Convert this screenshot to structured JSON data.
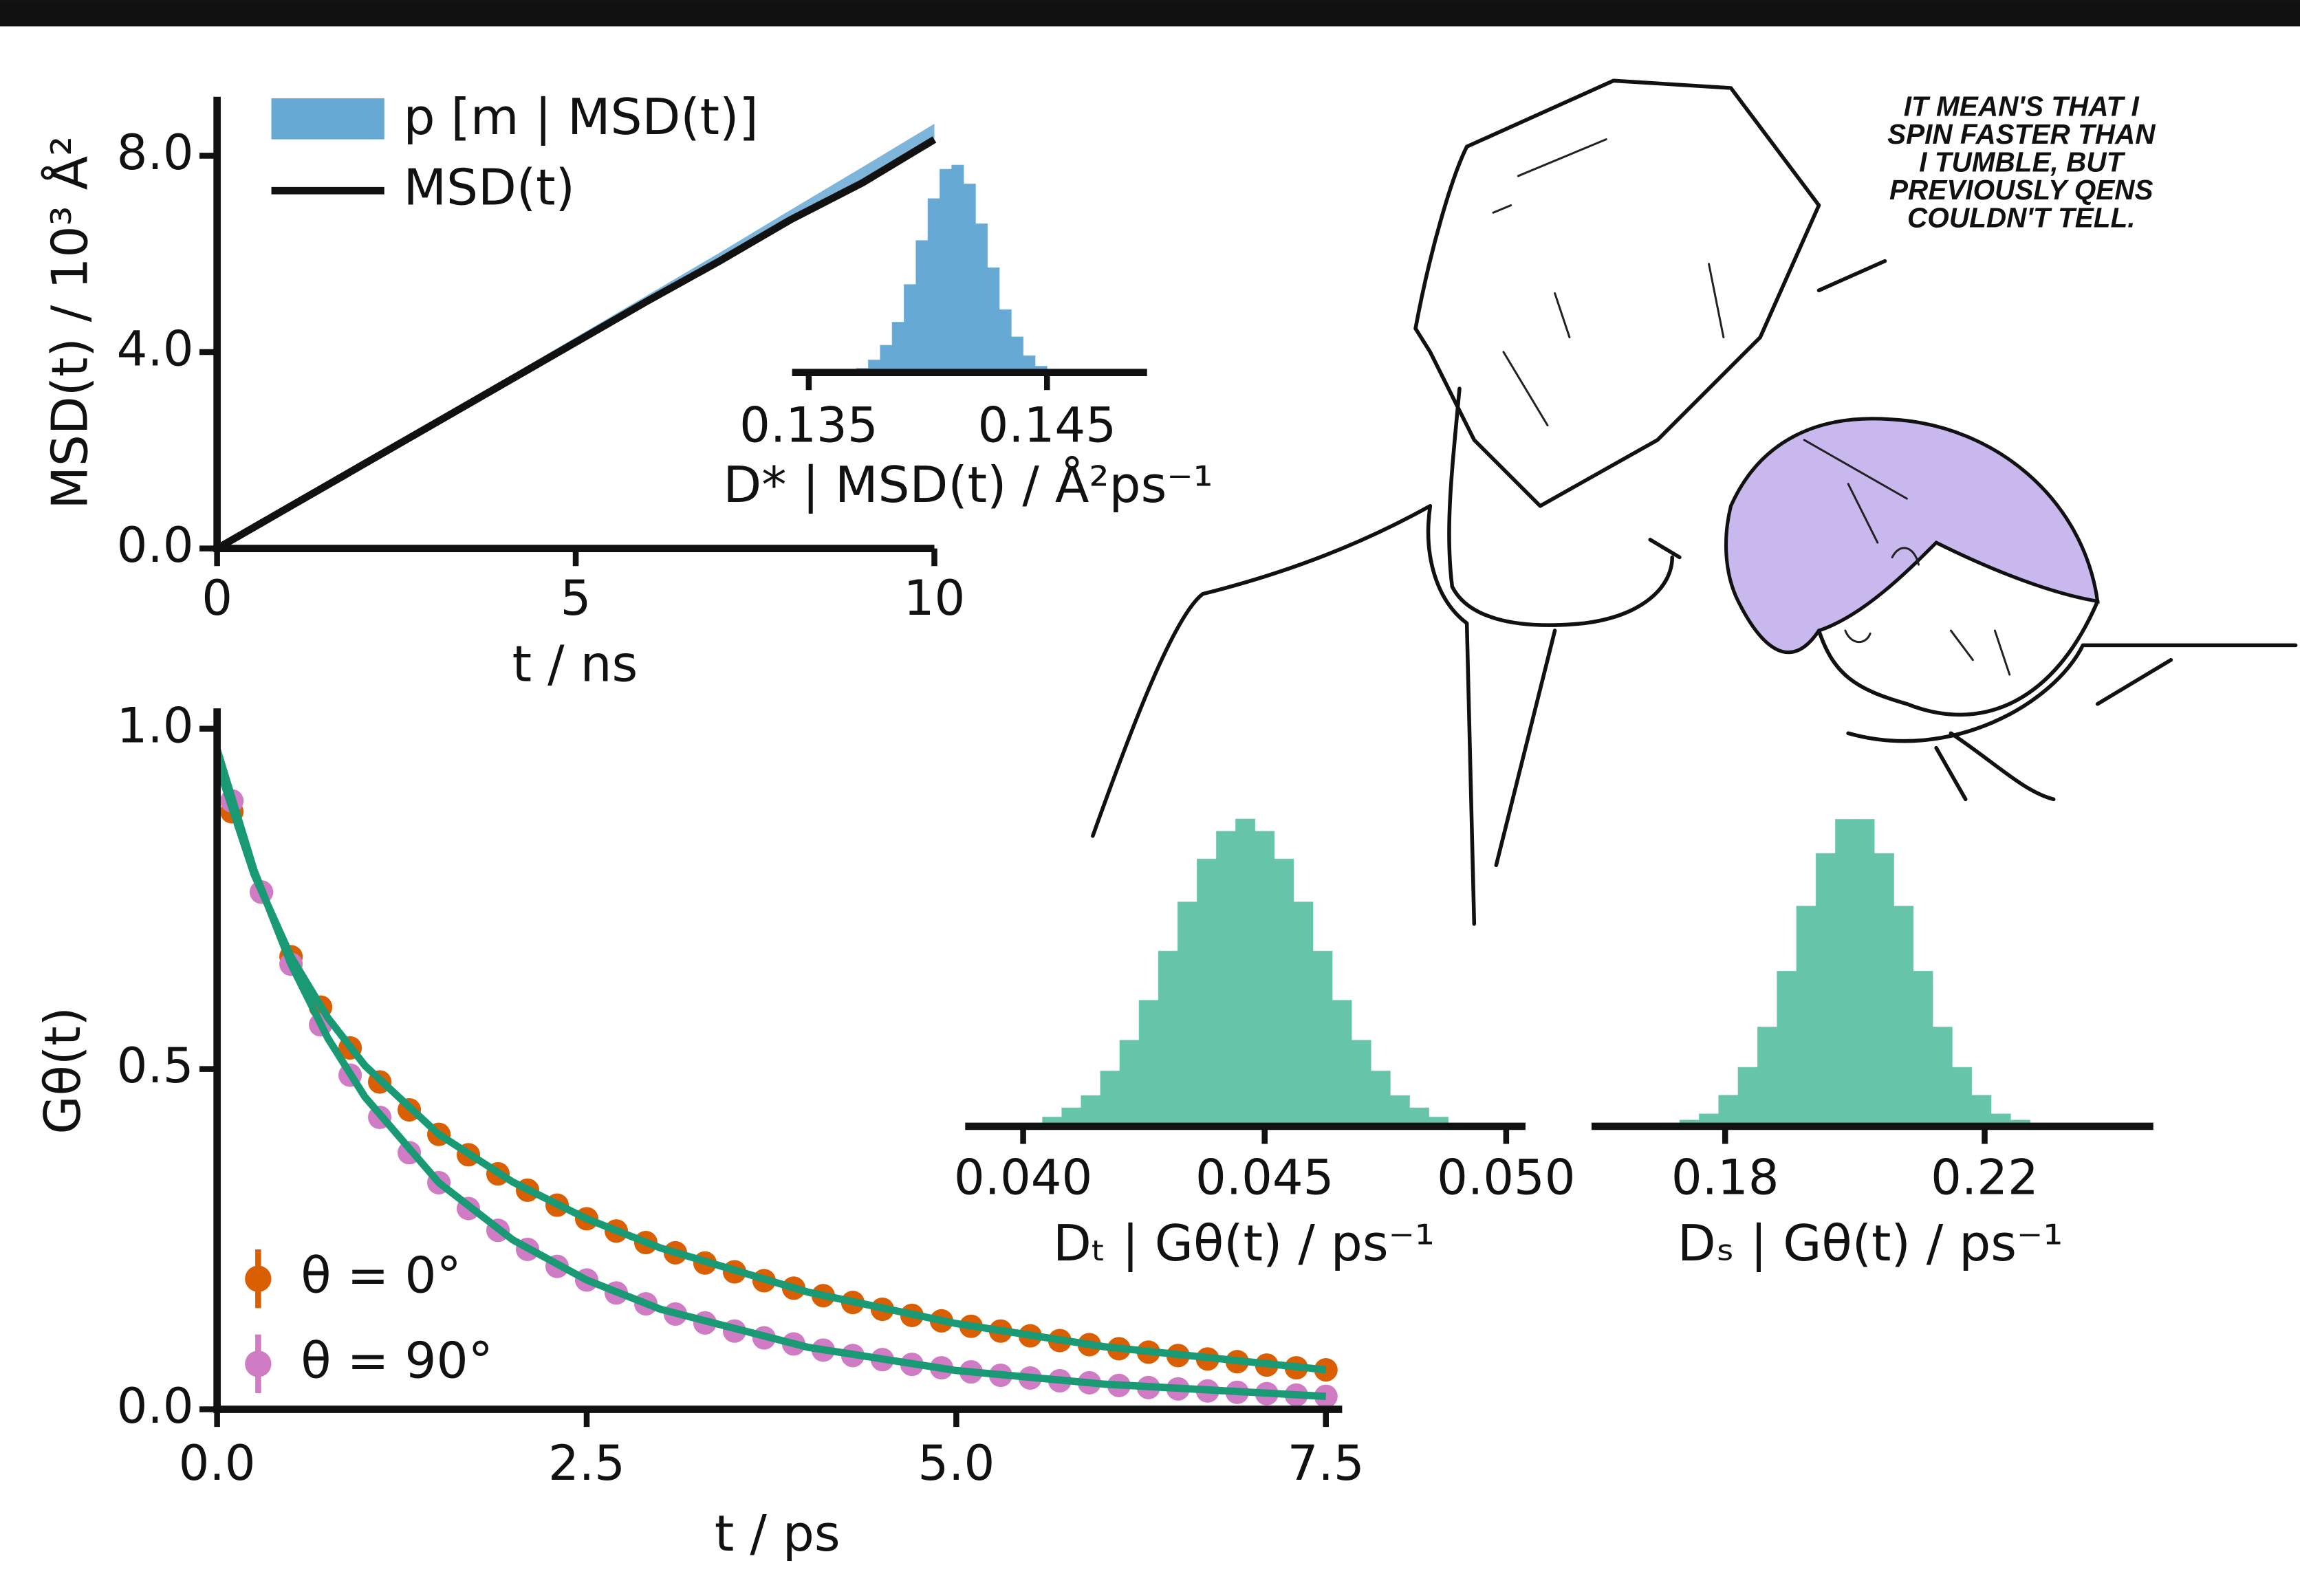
{
  "chart_data": [
    {
      "type": "line",
      "ylabel": "MSD(t) / 10³ Å²",
      "xlabel": "t / ns",
      "xlim": [
        0,
        10
      ],
      "ylim": [
        0,
        9.2
      ],
      "xticks": [
        0,
        5,
        10
      ],
      "yticks": [
        {
          "value": 0,
          "label": "0.0"
        },
        {
          "value": 4,
          "label": "4.0"
        },
        {
          "value": 8,
          "label": "8.0"
        }
      ],
      "series": [
        {
          "name": "p [m | MSD(t)]",
          "color": "#66a9d4",
          "x": [
            0,
            1,
            2,
            3,
            4,
            5,
            6,
            7,
            8,
            9,
            10
          ],
          "upper": [
            0,
            0.86,
            1.72,
            2.58,
            3.44,
            4.3,
            5.16,
            6.02,
            6.9,
            7.77,
            8.65
          ],
          "lower": [
            0,
            0.83,
            1.66,
            2.49,
            3.32,
            4.15,
            4.98,
            5.8,
            6.65,
            7.45,
            8.3
          ]
        },
        {
          "name": "MSD(t)",
          "color": "#111111",
          "x": [
            0,
            1,
            2,
            3,
            4,
            5,
            6,
            7,
            8,
            9,
            10
          ],
          "values": [
            0,
            0.84,
            1.68,
            2.52,
            3.36,
            4.2,
            5.04,
            5.85,
            6.7,
            7.45,
            8.33
          ]
        }
      ]
    },
    {
      "type": "histogram",
      "xlabel": "D* | MSD(t) / Å²ps⁻¹",
      "xlim": [
        0.1343,
        0.1492
      ],
      "ylim": [
        0,
        105
      ],
      "xticks": [
        0.135,
        0.145
      ],
      "color": "#66a9d4",
      "bins": [
        0.137,
        0.1375,
        0.138,
        0.1385,
        0.139,
        0.1395,
        0.14,
        0.1405,
        0.141,
        0.1415,
        0.142,
        0.1425,
        0.143,
        0.1435,
        0.144,
        0.1445,
        0.145,
        0.1455,
        0.146
      ],
      "values": [
        2,
        6,
        13,
        24,
        42,
        63,
        83,
        97,
        99,
        90,
        71,
        50,
        30,
        17,
        8,
        3,
        1,
        0
      ]
    },
    {
      "type": "scatter",
      "ylabel": "Gθ(t)",
      "xlabel": "t / ps",
      "xlim": [
        0,
        7.61
      ],
      "ylim": [
        0,
        1.03
      ],
      "xticks": [
        {
          "value": 0,
          "label": "0.0"
        },
        2.5,
        {
          "value": 5,
          "label": "5.0"
        },
        7.5
      ],
      "yticks": [
        {
          "value": 0,
          "label": "0.0"
        },
        0.5,
        {
          "value": 1,
          "label": "1.0"
        }
      ],
      "x": [
        0.1,
        0.3,
        0.5,
        0.7,
        0.9,
        1.1,
        1.3,
        1.5,
        1.7,
        1.9,
        2.1,
        2.3,
        2.5,
        2.7,
        2.9,
        3.1,
        3.3,
        3.5,
        3.7,
        3.9,
        4.1,
        4.3,
        4.5,
        4.7,
        4.9,
        5.1,
        5.3,
        5.5,
        5.7,
        5.9,
        6.1,
        6.3,
        6.5,
        6.7,
        6.9,
        7.1,
        7.3,
        7.5
      ],
      "series": [
        {
          "name": "θ = 0°",
          "color": "#d95f02",
          "values": [
            0.878,
            0.76,
            0.665,
            0.591,
            0.531,
            0.481,
            0.44,
            0.404,
            0.374,
            0.346,
            0.322,
            0.3,
            0.28,
            0.262,
            0.245,
            0.23,
            0.215,
            0.202,
            0.189,
            0.178,
            0.167,
            0.157,
            0.147,
            0.138,
            0.13,
            0.122,
            0.115,
            0.108,
            0.101,
            0.095,
            0.089,
            0.084,
            0.079,
            0.074,
            0.07,
            0.065,
            0.061,
            0.058
          ]
        },
        {
          "name": "θ = 90°",
          "color": "#d07cc4",
          "values": [
            0.894,
            0.76,
            0.654,
            0.565,
            0.491,
            0.429,
            0.377,
            0.333,
            0.295,
            0.263,
            0.235,
            0.21,
            0.19,
            0.171,
            0.155,
            0.14,
            0.127,
            0.115,
            0.105,
            0.096,
            0.087,
            0.079,
            0.073,
            0.066,
            0.061,
            0.055,
            0.05,
            0.046,
            0.042,
            0.039,
            0.035,
            0.032,
            0.03,
            0.027,
            0.025,
            0.023,
            0.021,
            0.019
          ]
        }
      ],
      "fits": [
        {
          "color": "#1a9a74",
          "x": [
            0,
            0.25,
            0.5,
            0.75,
            1,
            1.5,
            2,
            2.5,
            3,
            4,
            5,
            6,
            7.5
          ],
          "values": [
            0.95,
            0.786,
            0.665,
            0.575,
            0.505,
            0.404,
            0.334,
            0.28,
            0.237,
            0.172,
            0.126,
            0.092,
            0.058
          ]
        },
        {
          "color": "#1a9a74",
          "x": [
            0,
            0.25,
            0.5,
            0.75,
            1,
            1.5,
            2,
            2.5,
            3,
            4,
            5,
            6,
            7.5
          ],
          "values": [
            0.97,
            0.792,
            0.654,
            0.545,
            0.459,
            0.333,
            0.249,
            0.19,
            0.147,
            0.091,
            0.057,
            0.037,
            0.019
          ]
        }
      ]
    },
    {
      "type": "histogram",
      "xlabel": "Dₜ | Gθ(t) / ps⁻¹",
      "xlim": [
        0.0388,
        0.0504
      ],
      "ylim": [
        0,
        105
      ],
      "xticks": [
        {
          "value": 0.04,
          "label": "0.040"
        },
        0.045,
        {
          "value": 0.05,
          "label": "0.050"
        }
      ],
      "color": "#66c4a8",
      "bins": [
        0.04,
        0.0404,
        0.0408,
        0.0412,
        0.0416,
        0.042,
        0.0424,
        0.0428,
        0.0432,
        0.0436,
        0.044,
        0.0444,
        0.0448,
        0.0452,
        0.0456,
        0.046,
        0.0464,
        0.0468,
        0.0472,
        0.0476,
        0.048,
        0.0484,
        0.0488,
        0.0492,
        0.0496
      ],
      "values": [
        1,
        3,
        6,
        10,
        18,
        28,
        41,
        57,
        73,
        87,
        96,
        100,
        96,
        87,
        73,
        57,
        41,
        28,
        18,
        10,
        6,
        3,
        1,
        0
      ]
    },
    {
      "type": "histogram",
      "xlabel": "Dₛ | Gθ(t) / ps⁻¹",
      "xlim": [
        0.1594,
        0.246
      ],
      "ylim": [
        0,
        105
      ],
      "xticks": [
        0.18,
        0.22
      ],
      "color": "#66c4a8",
      "bins": [
        0.17,
        0.173,
        0.176,
        0.179,
        0.182,
        0.185,
        0.188,
        0.191,
        0.194,
        0.197,
        0.2,
        0.203,
        0.206,
        0.209,
        0.212,
        0.215,
        0.218,
        0.221,
        0.224,
        0.227,
        0.23
      ],
      "values": [
        1,
        2,
        4,
        10,
        19,
        32,
        50,
        71,
        88,
        99,
        99,
        88,
        71,
        50,
        32,
        19,
        10,
        4,
        2,
        1
      ]
    }
  ],
  "comic": {
    "speech": [
      "IT MEAN'S THAT I",
      "SPIN FASTER THAN",
      "I TUMBLE, BUT",
      "PREVIOUSLY QENS",
      "COULDN'T TELL."
    ]
  }
}
